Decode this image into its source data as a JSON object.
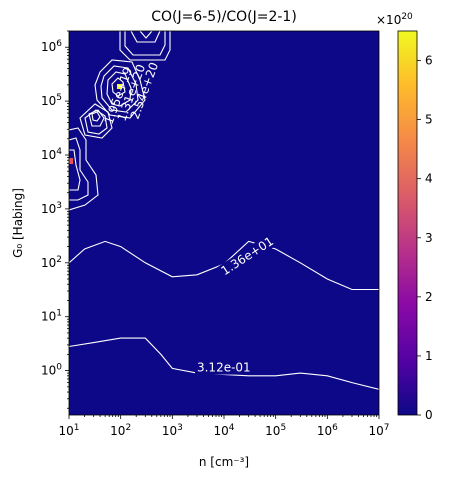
{
  "chart_data": {
    "type": "heatmap",
    "title": "CO(J=6-5)/CO(J=2-1)",
    "xlabel": "n [cm⁻³]",
    "ylabel": "G₀ [Habing]",
    "xscale": "log",
    "yscale": "log",
    "xlim": [
      10,
      10000000
    ],
    "ylim": [
      0.15,
      2000000
    ],
    "x_ticks": [
      {
        "value": 10,
        "base": "10",
        "exp": "1"
      },
      {
        "value": 100,
        "base": "10",
        "exp": "2"
      },
      {
        "value": 1000,
        "base": "10",
        "exp": "3"
      },
      {
        "value": 10000,
        "base": "10",
        "exp": "4"
      },
      {
        "value": 100000,
        "base": "10",
        "exp": "5"
      },
      {
        "value": 1000000,
        "base": "10",
        "exp": "6"
      },
      {
        "value": 10000000,
        "base": "10",
        "exp": "7"
      }
    ],
    "y_ticks": [
      {
        "value": 1,
        "base": "10",
        "exp": "0"
      },
      {
        "value": 10,
        "base": "10",
        "exp": "1"
      },
      {
        "value": 100,
        "base": "10",
        "exp": "2"
      },
      {
        "value": 1000,
        "base": "10",
        "exp": "3"
      },
      {
        "value": 10000,
        "base": "10",
        "exp": "4"
      },
      {
        "value": 100000,
        "base": "10",
        "exp": "5"
      },
      {
        "value": 1000000,
        "base": "10",
        "exp": "6"
      }
    ],
    "colorbar": {
      "colormap": "plasma",
      "min": 0,
      "max": 6.5,
      "ticks": [
        "0",
        "1",
        "2",
        "3",
        "4",
        "5",
        "6"
      ],
      "offset_base": "×10",
      "offset_exp": "20"
    },
    "background_color": "#0d0887",
    "contours": [
      {
        "label": "1.36e+01",
        "points": [
          [
            10,
            100
          ],
          [
            20,
            180
          ],
          [
            50,
            250
          ],
          [
            100,
            200
          ],
          [
            300,
            100
          ],
          [
            1000,
            55
          ],
          [
            3000,
            60
          ],
          [
            10000,
            95
          ],
          [
            30000,
            250
          ],
          [
            100000,
            180
          ],
          [
            300000,
            100
          ],
          [
            1000000,
            50
          ],
          [
            3000000,
            32
          ],
          [
            10000000,
            32
          ]
        ],
        "label_at": [
          10000,
          60
        ]
      },
      {
        "label": "3.12e-01",
        "points": [
          [
            10,
            2.8
          ],
          [
            30,
            3.3
          ],
          [
            100,
            4
          ],
          [
            300,
            4
          ],
          [
            600,
            2
          ],
          [
            1000,
            1.1
          ],
          [
            3000,
            0.9
          ],
          [
            30000,
            0.8
          ],
          [
            100000,
            0.8
          ],
          [
            300000,
            0.9
          ],
          [
            1000000,
            0.8
          ],
          [
            3000000,
            0.6
          ],
          [
            10000000,
            0.45
          ]
        ],
        "label_at": [
          3000,
          1
        ]
      }
    ],
    "peak_labels": [
      "1.95e+19",
      "1.31e+20",
      "2.54e+20"
    ]
  }
}
